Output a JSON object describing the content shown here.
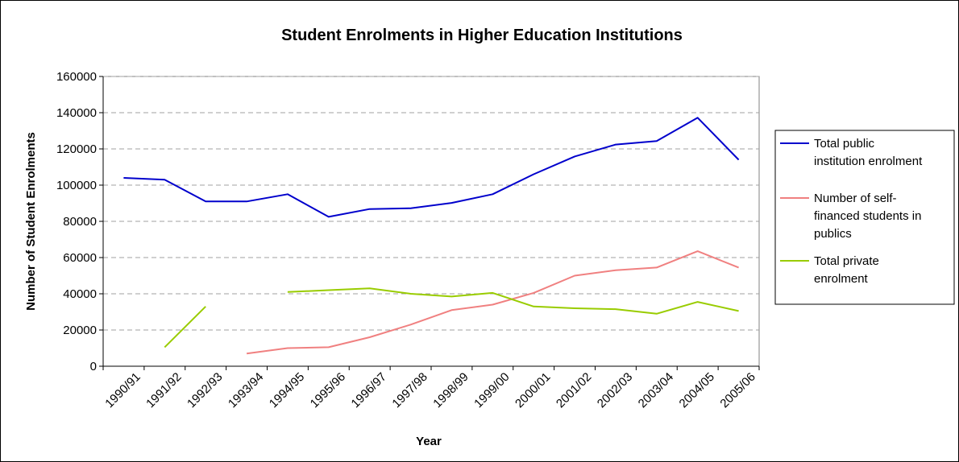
{
  "chart_data": {
    "type": "line",
    "title": "Student Enrolments in Higher Education Institutions",
    "xlabel": "Year",
    "ylabel": "Number of Student Enrolments",
    "categories": [
      "1990/91",
      "1991/92",
      "1992/93",
      "1993/94",
      "1994/95",
      "1995/96",
      "1996/97",
      "1997/98",
      "1998/99",
      "1999/00",
      "2000/01",
      "2001/02",
      "2002/03",
      "2003/04",
      "2004/05",
      "2005/06"
    ],
    "ylim": [
      0,
      160000
    ],
    "yticks": [
      0,
      20000,
      40000,
      60000,
      80000,
      100000,
      120000,
      140000,
      160000
    ],
    "ytick_labels": [
      "0",
      "20000",
      "40000",
      "60000",
      "80000",
      "100000",
      "120000",
      "140000",
      "160000"
    ],
    "grid": "horizontal dashed",
    "legend_position": "right",
    "series": [
      {
        "name": "Total public institution enrolment",
        "legend_lines": [
          "Total public",
          "institution enrolment"
        ],
        "color": "#0000cc",
        "values": [
          104000,
          103000,
          91000,
          91000,
          95000,
          82500,
          86800,
          87200,
          90200,
          95000,
          106000,
          115800,
          122400,
          124300,
          137200,
          114000
        ]
      },
      {
        "name": "Number of self-financed students in publics",
        "legend_lines": [
          "Number of self-",
          "financed students in",
          "publics"
        ],
        "color": "#f08080",
        "values": [
          null,
          null,
          null,
          7000,
          10000,
          10500,
          16000,
          23000,
          31000,
          34000,
          40500,
          50000,
          53000,
          54500,
          63500,
          54500
        ]
      },
      {
        "name": "Total private enrolment",
        "legend_lines": [
          "Total private",
          "enrolment"
        ],
        "color": "#99cc00",
        "values": [
          null,
          10500,
          33000,
          null,
          41000,
          42000,
          43000,
          40000,
          38500,
          40500,
          33000,
          32000,
          31500,
          29000,
          35500,
          30500
        ]
      }
    ]
  }
}
